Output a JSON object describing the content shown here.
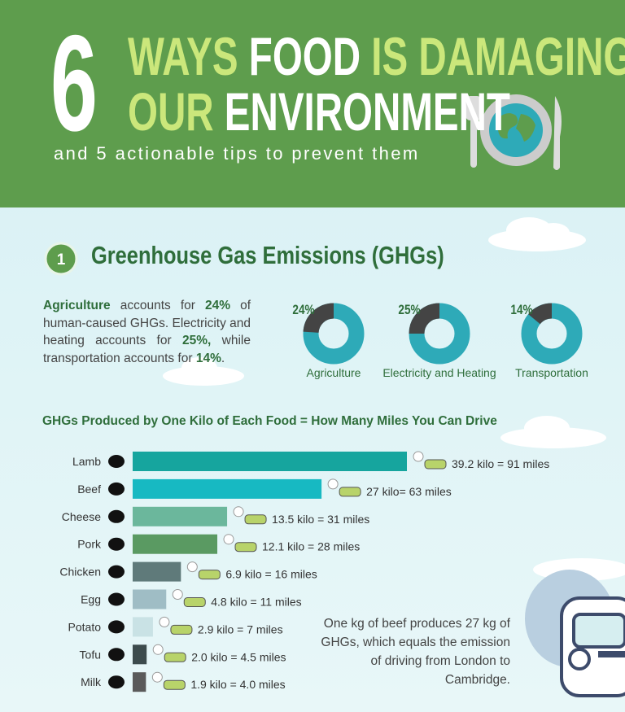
{
  "header": {
    "number": "6",
    "title_parts": [
      "WAYS",
      "FOOD",
      "IS DAMAGING",
      "OUR",
      "ENVIRONMENT"
    ],
    "subtitle": "and 5 actionable tips to prevent them"
  },
  "section": {
    "number": "1",
    "title": "Greenhouse Gas Emissions (GHGs)",
    "intro": [
      {
        "text": "Agriculture",
        "bold": true
      },
      {
        "text": " accounts for "
      },
      {
        "text": "24%",
        "bold": true
      },
      {
        "text": " of human-caused GHGs. Electricity and heating accounts for "
      },
      {
        "text": "25%,",
        "bold": true
      },
      {
        "text": " while transportation accounts for "
      },
      {
        "text": "14%",
        "bold": true
      },
      {
        "text": "."
      }
    ]
  },
  "chart_data": [
    {
      "type": "donut",
      "categories": [
        "Agriculture",
        "Electricity and Heating",
        "Transportation"
      ],
      "values": [
        24,
        25,
        14
      ],
      "value_labels": [
        "24%",
        "25%",
        "14%"
      ],
      "color": "#444444",
      "rest_color": "#2eaab8"
    },
    {
      "type": "hbar",
      "title": "GHGs Produced by One Kilo of Each Food = How Many Miles You Can Drive",
      "categories": [
        "Lamb",
        "Beef",
        "Cheese",
        "Pork",
        "Chicken",
        "Egg",
        "Potato",
        "Tofu",
        "Milk"
      ],
      "values": [
        39.2,
        27,
        13.5,
        12.1,
        6.9,
        4.8,
        2.9,
        2.0,
        1.9
      ],
      "value_labels": [
        "39.2 kilo = 91 miles",
        "27 kilo= 63 miles",
        "13.5 kilo = 31 miles",
        "12.1 kilo = 28 miles",
        "6.9 kilo = 16 miles",
        "4.8 kilo = 11 miles",
        "2.9 kilo = 7 miles",
        "2.0 kilo = 4.5 miles",
        "1.9 kilo = 4.0 miles"
      ],
      "colors": [
        "#16a59e",
        "#17b9c2",
        "#6bb79c",
        "#5a9a62",
        "#5f7a7a",
        "#9fbdc5",
        "#c9e2e5",
        "#3d4b4d",
        "#5a5a5a"
      ],
      "annotation": "One kg of beef produces 27 kg of GHGs, which equals the emission of driving from London to Cambridge."
    }
  ]
}
